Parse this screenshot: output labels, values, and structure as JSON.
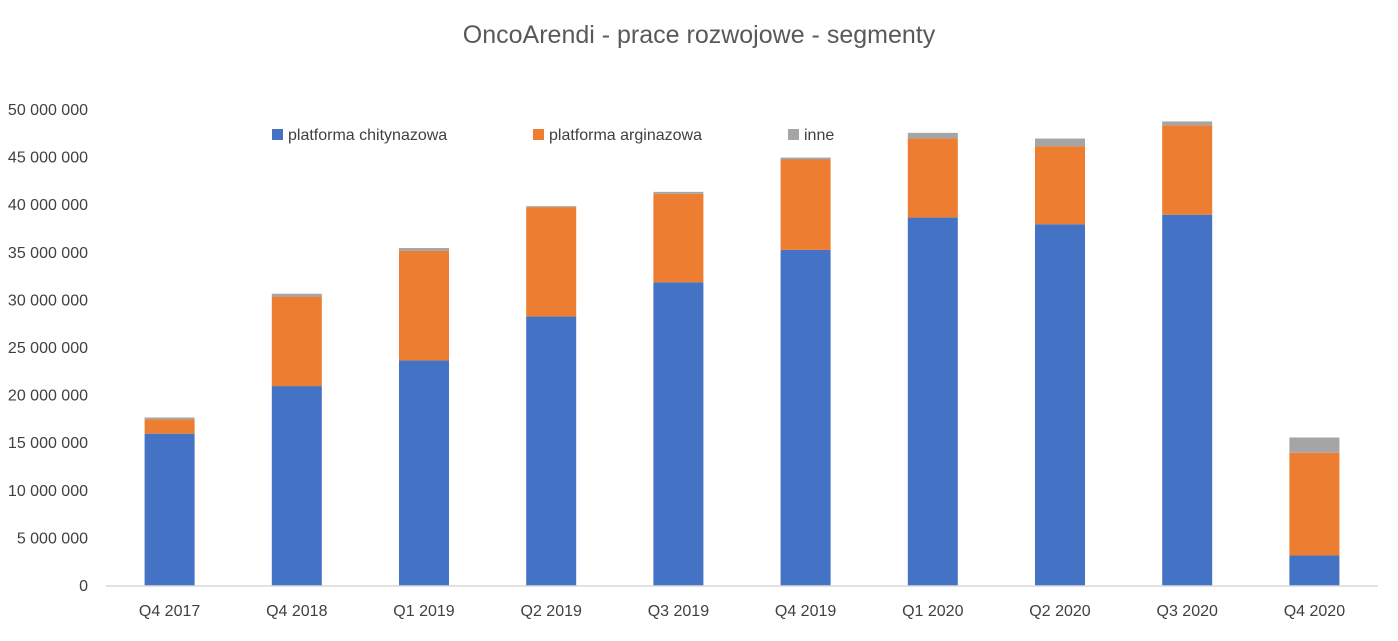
{
  "chart_data": {
    "type": "bar",
    "stacked": true,
    "title": "OncoArendi - prace rozwojowe - segmenty",
    "xlabel": "",
    "ylabel": "",
    "categories": [
      "Q4 2017",
      "Q4 2018",
      "Q1 2019",
      "Q2 2019",
      "Q3 2019",
      "Q4 2019",
      "Q1 2020",
      "Q2 2020",
      "Q3 2020",
      "Q4 2020"
    ],
    "series": [
      {
        "name": "platforma chitynazowa",
        "color": "#4472c4",
        "values": [
          16000000,
          21000000,
          23700000,
          28300000,
          31900000,
          35300000,
          38700000,
          38000000,
          39000000,
          3200000
        ]
      },
      {
        "name": "platforma arginazowa",
        "color": "#ed7d31",
        "values": [
          1500000,
          9400000,
          11500000,
          11500000,
          9300000,
          9500000,
          8300000,
          8200000,
          9400000,
          10800000
        ]
      },
      {
        "name": "inne",
        "color": "#a5a5a5",
        "values": [
          200000,
          300000,
          300000,
          100000,
          200000,
          200000,
          600000,
          800000,
          400000,
          1600000
        ]
      }
    ],
    "ylim": [
      0,
      50000000
    ],
    "yticks": [
      0,
      5000000,
      10000000,
      15000000,
      20000000,
      25000000,
      30000000,
      35000000,
      40000000,
      45000000,
      50000000
    ],
    "ytick_labels": [
      "0",
      "5 000 000",
      "10 000 000",
      "15 000 000",
      "20 000 000",
      "25 000 000",
      "30 000 000",
      "35 000 000",
      "40 000 000",
      "45 000 000",
      "50 000 000"
    ],
    "grid": false,
    "legend_position": "top"
  }
}
